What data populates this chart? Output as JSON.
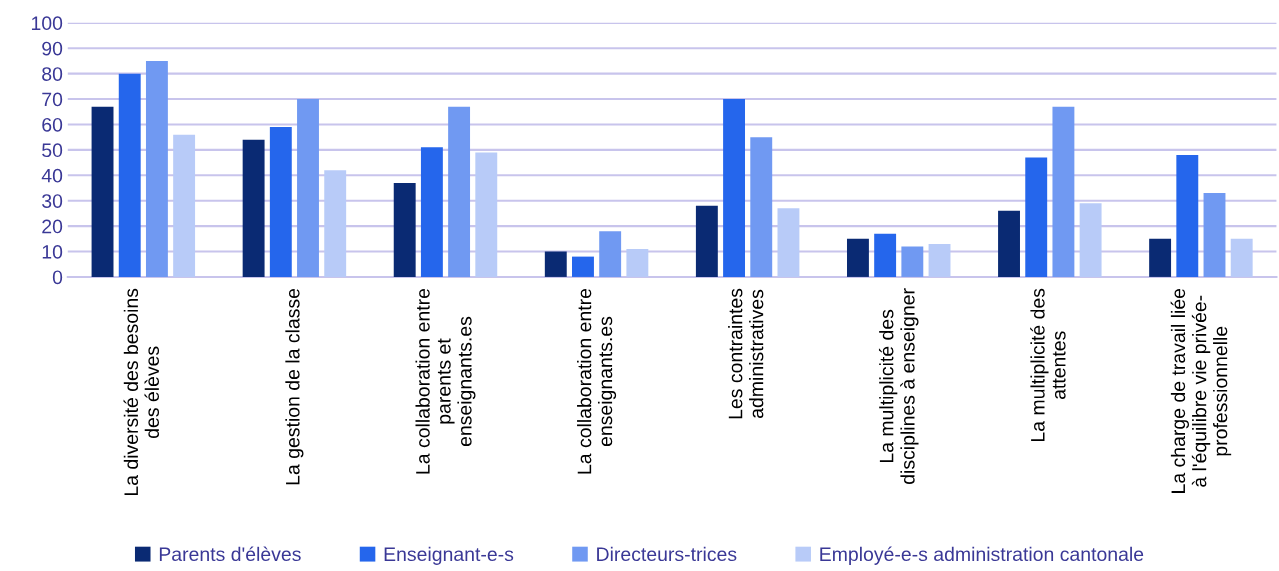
{
  "chart_data": {
    "type": "bar",
    "categories": [
      "La diversité des besoins\ndes élèves",
      "La gestion de la classe",
      "La collaboration entre\nparents et\nenseignants.es",
      "La collaboration entre\nenseignants.es",
      "Les contraintes\nadministratives",
      "La multiplicité des\ndisciplines à enseigner",
      "La multiplicité des\nattentes",
      "La charge de travail liée\nà l'équilibre vie privée-\nprofessionnelle"
    ],
    "series": [
      {
        "name": "Parents d'élèves",
        "color": "#0a2a73",
        "values": [
          67,
          54,
          37,
          10,
          28,
          15,
          26,
          15
        ]
      },
      {
        "name": "Enseignant-e-s",
        "color": "#2566ec",
        "values": [
          80,
          59,
          51,
          8,
          70,
          17,
          47,
          48
        ]
      },
      {
        "name": "Directeurs-trices",
        "color": "#7099f2",
        "values": [
          85,
          70,
          67,
          18,
          55,
          12,
          67,
          33
        ]
      },
      {
        "name": "Employé-e-s administration cantonale",
        "color": "#b8cbf8",
        "values": [
          56,
          42,
          49,
          11,
          27,
          13,
          29,
          15
        ]
      }
    ],
    "ylim": [
      0,
      100
    ],
    "yticks": [
      0,
      10,
      20,
      30,
      40,
      50,
      60,
      70,
      80,
      90,
      100
    ],
    "grid": "y",
    "legend": "bottom"
  }
}
